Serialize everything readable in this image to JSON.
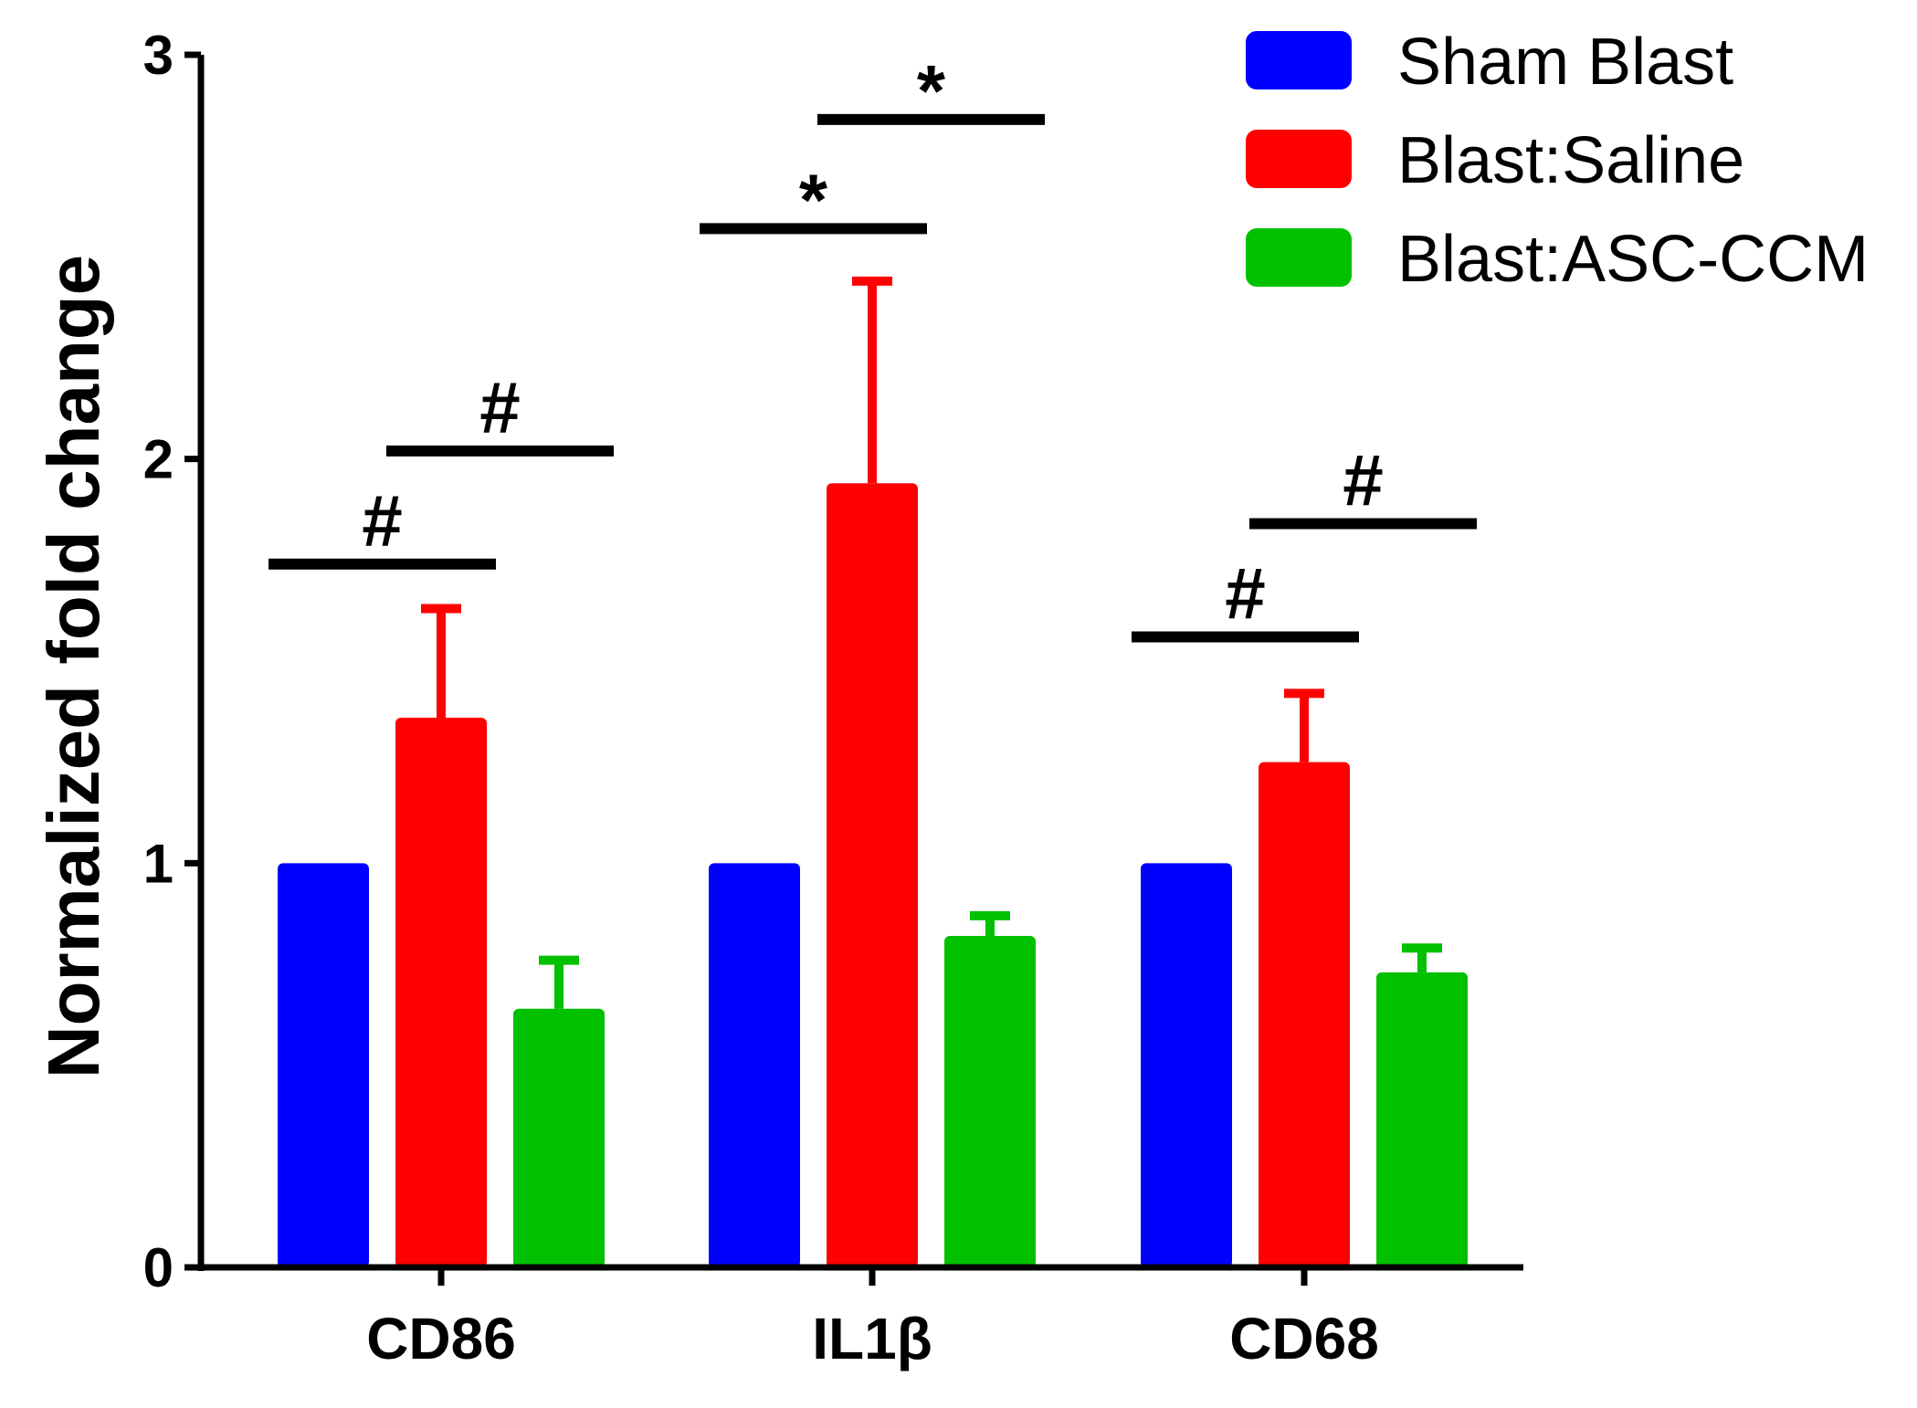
{
  "chart_data": {
    "type": "bar",
    "title": "",
    "xlabel": "",
    "ylabel": "Normalized fold change",
    "ylim": [
      0,
      3
    ],
    "yticks": [
      0,
      1,
      2,
      3
    ],
    "ytick_labels": [
      "0",
      "1",
      "2",
      "3"
    ],
    "categories": [
      "CD86",
      "IL1β",
      "CD68"
    ],
    "series": [
      {
        "name": "Sham Blast",
        "color": "#0000ff",
        "values": [
          1.0,
          1.0,
          1.0
        ],
        "errors": [
          0,
          0,
          0
        ]
      },
      {
        "name": "Blast:Saline",
        "color": "#ff0000",
        "values": [
          1.36,
          1.94,
          1.25
        ],
        "errors": [
          0.27,
          0.5,
          0.17
        ]
      },
      {
        "name": "Blast:ASC-CCM",
        "color": "#00c000",
        "values": [
          0.64,
          0.82,
          0.73
        ],
        "errors": [
          0.12,
          0.05,
          0.06
        ]
      }
    ],
    "annotations": [
      {
        "category": 0,
        "from_series": 0,
        "to_series": 1,
        "y": 1.74,
        "label": "#"
      },
      {
        "category": 0,
        "from_series": 1,
        "to_series": 2,
        "y": 2.02,
        "label": "#"
      },
      {
        "category": 1,
        "from_series": 0,
        "to_series": 1,
        "y": 2.57,
        "label": "*"
      },
      {
        "category": 1,
        "from_series": 1,
        "to_series": 2,
        "y": 2.84,
        "label": "*"
      },
      {
        "category": 2,
        "from_series": 0,
        "to_series": 1,
        "y": 1.56,
        "label": "#"
      },
      {
        "category": 2,
        "from_series": 1,
        "to_series": 2,
        "y": 1.84,
        "label": "#"
      }
    ],
    "legend": {
      "position": "top-right",
      "entries": [
        "Sham Blast",
        "Blast:Saline",
        "Blast:ASC-CCM"
      ]
    },
    "grid": false
  }
}
